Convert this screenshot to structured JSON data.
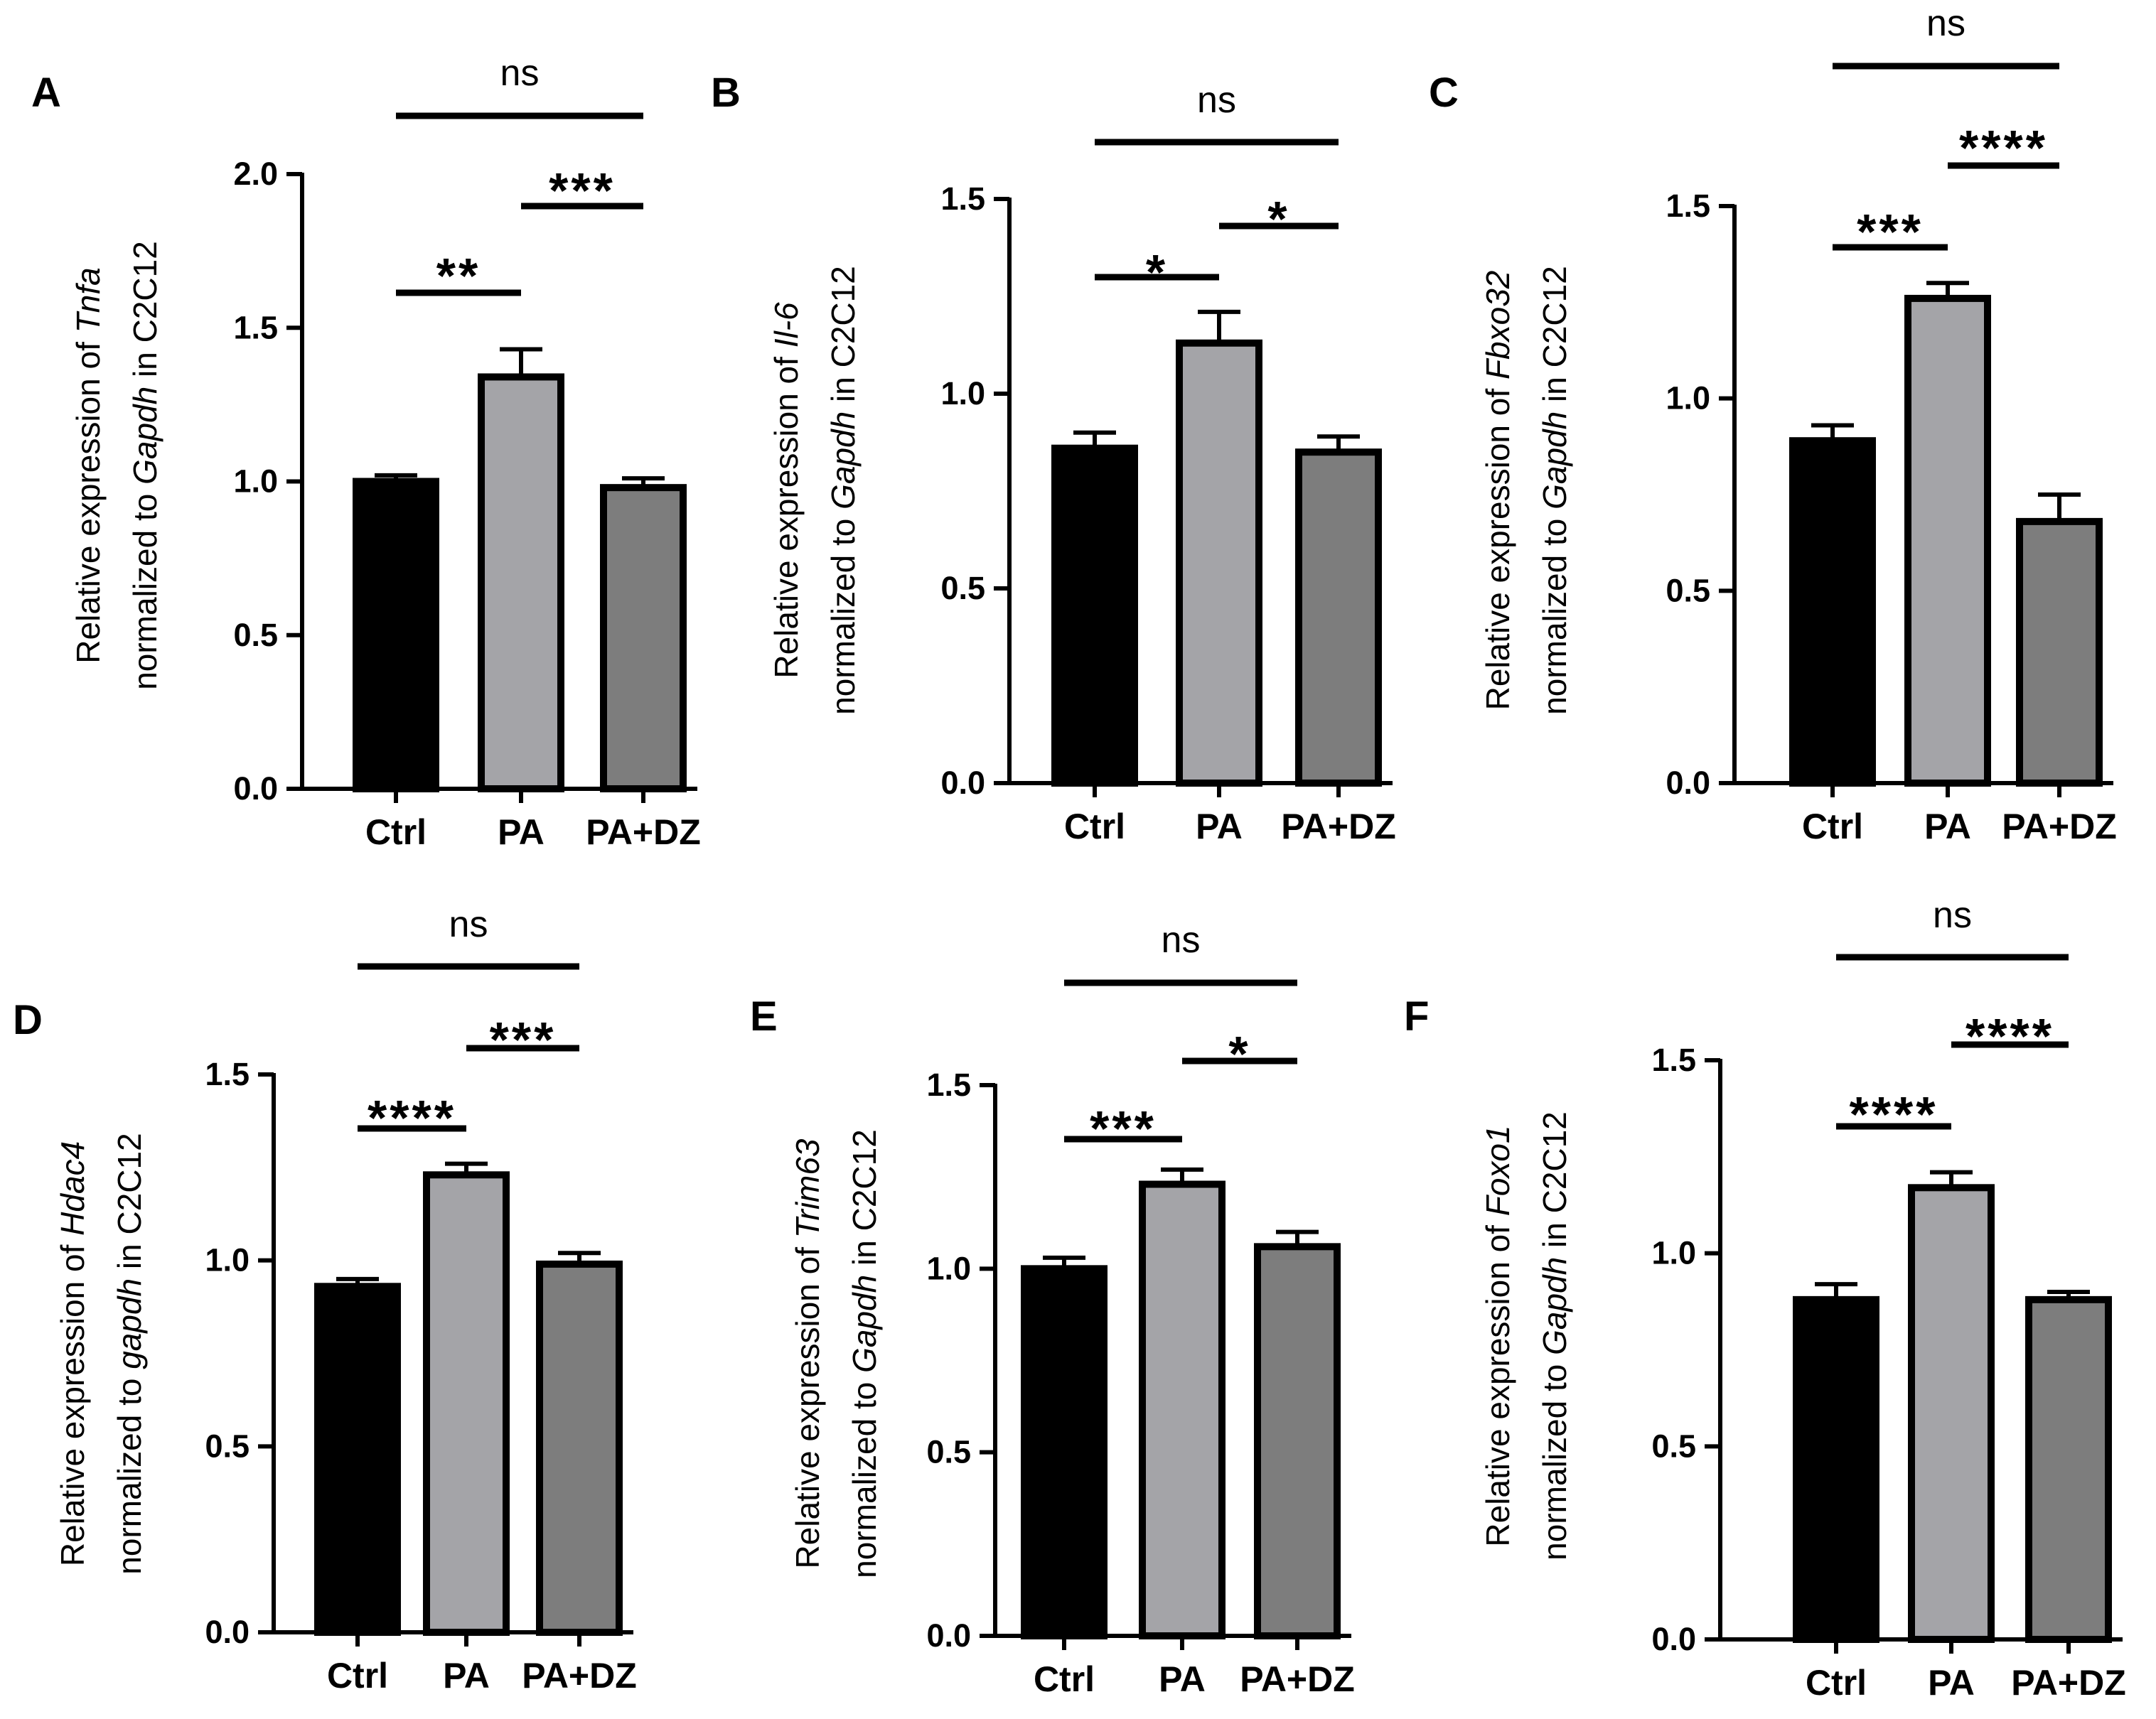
{
  "colors": {
    "ctrl": "#000000",
    "pa": "#a4a4a8",
    "padz": "#7d7d7d",
    "line": "#000000"
  },
  "chart_data": [
    {
      "panel": "A",
      "type": "bar",
      "categories": [
        "Ctrl",
        "PA",
        "PA+DZ"
      ],
      "values": [
        1.0,
        1.34,
        0.98
      ],
      "errors": [
        0.02,
        0.09,
        0.03
      ],
      "ylim": [
        0,
        2.0
      ],
      "yticks": [
        "0.0",
        "0.5",
        "1.0",
        "1.5",
        "2.0"
      ],
      "ylabel_line1": [
        "Relative expression of ",
        "Tnfa"
      ],
      "ylabel_line2": [
        "normalized to ",
        "Gapdh",
        " in C2C12"
      ],
      "comparisons": [
        {
          "from": 0,
          "to": 1,
          "label": "**"
        },
        {
          "from": 1,
          "to": 2,
          "label": "***"
        },
        {
          "from": 0,
          "to": 2,
          "label": "ns"
        }
      ]
    },
    {
      "panel": "B",
      "type": "bar",
      "categories": [
        "Ctrl",
        "PA",
        "PA+DZ"
      ],
      "values": [
        0.86,
        1.13,
        0.85
      ],
      "errors": [
        0.04,
        0.08,
        0.04
      ],
      "ylim": [
        0,
        1.5
      ],
      "yticks": [
        "0.0",
        "0.5",
        "1.0",
        "1.5"
      ],
      "ylabel_line1": [
        "Relative expression of ",
        "Il-6"
      ],
      "ylabel_line2": [
        "normalized to ",
        "Gapdh",
        " in C2C12"
      ],
      "comparisons": [
        {
          "from": 0,
          "to": 1,
          "label": "*"
        },
        {
          "from": 1,
          "to": 2,
          "label": "*"
        },
        {
          "from": 0,
          "to": 2,
          "label": "ns"
        }
      ]
    },
    {
      "panel": "C",
      "type": "bar",
      "categories": [
        "Ctrl",
        "PA",
        "PA+DZ"
      ],
      "values": [
        0.89,
        1.26,
        0.68
      ],
      "errors": [
        0.04,
        0.04,
        0.07
      ],
      "ylim": [
        0,
        1.5
      ],
      "yticks": [
        "0.0",
        "0.5",
        "1.0",
        "1.5"
      ],
      "ylabel_line1": [
        "Relative expression of ",
        "Fbxo32"
      ],
      "ylabel_line2": [
        "normalized to ",
        "Gapdh",
        " in C2C12"
      ],
      "comparisons": [
        {
          "from": 0,
          "to": 1,
          "label": "***"
        },
        {
          "from": 1,
          "to": 2,
          "label": "****"
        },
        {
          "from": 0,
          "to": 2,
          "label": "ns"
        }
      ]
    },
    {
      "panel": "D",
      "type": "bar",
      "categories": [
        "Ctrl",
        "PA",
        "PA+DZ"
      ],
      "values": [
        0.93,
        1.23,
        0.99
      ],
      "errors": [
        0.02,
        0.03,
        0.03
      ],
      "ylim": [
        0,
        1.5
      ],
      "yticks": [
        "0.0",
        "0.5",
        "1.0",
        "1.5"
      ],
      "ylabel_line1": [
        "Relative expression of ",
        "Hdac4"
      ],
      "ylabel_line2": [
        "normalized to ",
        "gapdh",
        " in C2C12"
      ],
      "comparisons": [
        {
          "from": 0,
          "to": 1,
          "label": "****"
        },
        {
          "from": 1,
          "to": 2,
          "label": "***"
        },
        {
          "from": 0,
          "to": 2,
          "label": "ns"
        }
      ]
    },
    {
      "panel": "E",
      "type": "bar",
      "categories": [
        "Ctrl",
        "PA",
        "PA+DZ"
      ],
      "values": [
        1.0,
        1.23,
        1.06
      ],
      "errors": [
        0.03,
        0.04,
        0.04
      ],
      "ylim": [
        0,
        1.5
      ],
      "yticks": [
        "0.0",
        "0.5",
        "1.0",
        "1.5"
      ],
      "ylabel_line1": [
        "Relative expression of ",
        "Trim63"
      ],
      "ylabel_line2": [
        "normalized to ",
        "Gapdh",
        " in C2C12"
      ],
      "comparisons": [
        {
          "from": 0,
          "to": 1,
          "label": "***"
        },
        {
          "from": 1,
          "to": 2,
          "label": "*"
        },
        {
          "from": 0,
          "to": 2,
          "label": "ns"
        }
      ]
    },
    {
      "panel": "F",
      "type": "bar",
      "categories": [
        "Ctrl",
        "PA",
        "PA+DZ"
      ],
      "values": [
        0.88,
        1.17,
        0.88
      ],
      "errors": [
        0.04,
        0.04,
        0.02
      ],
      "ylim": [
        0,
        1.5
      ],
      "yticks": [
        "0.0",
        "0.5",
        "1.0",
        "1.5"
      ],
      "ylabel_line1": [
        "Relative expression of ",
        "Foxo1"
      ],
      "ylabel_line2": [
        "normalized to ",
        "Gapdh",
        " in C2C12"
      ],
      "comparisons": [
        {
          "from": 0,
          "to": 1,
          "label": "****"
        },
        {
          "from": 1,
          "to": 2,
          "label": "****"
        },
        {
          "from": 0,
          "to": 2,
          "label": "ns"
        }
      ]
    }
  ]
}
